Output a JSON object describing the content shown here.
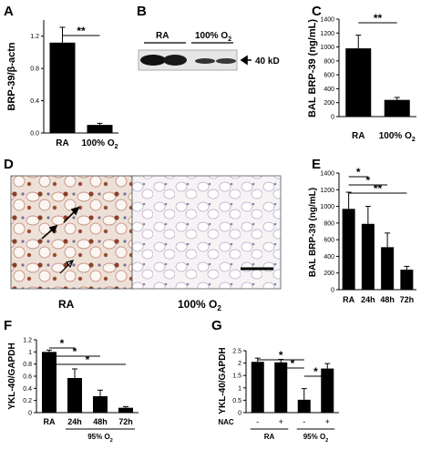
{
  "figure": {
    "panel_letters": [
      "A",
      "B",
      "C",
      "D",
      "E",
      "F",
      "G"
    ],
    "blot": {
      "lanes_left": "RA",
      "lanes_right": "100% O",
      "lanes_right_sub": "2",
      "band_marker": "40 kD"
    },
    "micro": {
      "left_label": "RA",
      "right_label": "100% O",
      "right_label_sub": "2"
    }
  },
  "chart_data": [
    {
      "id": "A",
      "type": "bar",
      "ylabel": "BRP-39/β-actn",
      "categories": [
        "RA",
        "100% O"
      ],
      "category_subs": [
        "",
        "2"
      ],
      "values": [
        1.12,
        0.1
      ],
      "errors": [
        0.19,
        0.02
      ],
      "ylim": [
        0,
        1.4
      ],
      "yticks": [
        "0.0",
        "0.4",
        "0.8",
        "1.2"
      ],
      "ytick_values": [
        0,
        0.4,
        0.8,
        1.2
      ],
      "bar_color": "#000000",
      "sig": [
        {
          "from": 0,
          "to": 1,
          "text": "**"
        }
      ]
    },
    {
      "id": "C",
      "type": "bar",
      "ylabel": "BAL BRP-39 (ng/mL)",
      "categories": [
        "RA",
        "100% O"
      ],
      "category_subs": [
        "",
        "2"
      ],
      "values": [
        980,
        240
      ],
      "errors": [
        190,
        35
      ],
      "ylim": [
        0,
        1400
      ],
      "yticks": [
        "0",
        "200",
        "400",
        "600",
        "800",
        "1000",
        "1200",
        "1400"
      ],
      "ytick_values": [
        0,
        200,
        400,
        600,
        800,
        1000,
        1200,
        1400
      ],
      "bar_color": "#000000",
      "sig": [
        {
          "from": 0,
          "to": 1,
          "text": "**"
        }
      ]
    },
    {
      "id": "E",
      "type": "bar",
      "ylabel": "BAL BRP-39 (ng/mL)",
      "categories": [
        "RA",
        "24h",
        "48h",
        "72h"
      ],
      "values": [
        970,
        790,
        510,
        240
      ],
      "errors": [
        200,
        210,
        170,
        40
      ],
      "ylim": [
        0,
        1400
      ],
      "yticks": [
        "0",
        "200",
        "400",
        "600",
        "800",
        "1000",
        "1200",
        "1400"
      ],
      "ytick_values": [
        0,
        200,
        400,
        600,
        800,
        1000,
        1200,
        1400
      ],
      "bar_color": "#000000",
      "sig": [
        {
          "from": 0,
          "to": 1,
          "text": "*"
        },
        {
          "from": 0,
          "to": 2,
          "text": "*"
        },
        {
          "from": 0,
          "to": 3,
          "text": "**"
        }
      ]
    },
    {
      "id": "F",
      "type": "bar",
      "ylabel": "YKL-40/GAPDH",
      "categories": [
        "RA",
        "24h",
        "48h",
        "72h"
      ],
      "values": [
        1.0,
        0.57,
        0.27,
        0.08
      ],
      "errors": [
        0.03,
        0.15,
        0.1,
        0.02
      ],
      "ylim": [
        0,
        1.2
      ],
      "yticks": [
        "0",
        "0.2",
        "0.4",
        "0.6",
        "0.8",
        "1",
        "1.2"
      ],
      "ytick_values": [
        0,
        0.2,
        0.4,
        0.6,
        0.8,
        1,
        1.2
      ],
      "bar_color": "#000000",
      "group_label": "95% O",
      "group_label_sub": "2",
      "sig": [
        {
          "from": 0,
          "to": 1,
          "text": "*"
        },
        {
          "from": 0,
          "to": 2,
          "text": "*"
        },
        {
          "from": 0,
          "to": 3,
          "text": "*"
        }
      ]
    },
    {
      "id": "G",
      "type": "bar",
      "ylabel": "YKL-40/GAPDH",
      "categories": [
        "-",
        "+",
        "-",
        "+"
      ],
      "row_label": "NAC",
      "group_labels": [
        "RA",
        "95% O"
      ],
      "group_label_subs": [
        "",
        "2"
      ],
      "values": [
        2.05,
        2.03,
        0.52,
        1.78
      ],
      "errors": [
        0.15,
        0.12,
        0.45,
        0.2
      ],
      "ylim": [
        0,
        2.5
      ],
      "yticks": [
        "0",
        "0.5",
        "1",
        "1.5",
        "2",
        "2.5"
      ],
      "ytick_values": [
        0,
        0.5,
        1,
        1.5,
        2,
        2.5
      ],
      "bar_color": "#000000",
      "sig": [
        {
          "from": 0,
          "to": 2,
          "text": "*"
        },
        {
          "from": 1,
          "to": 2,
          "text": "*"
        },
        {
          "from": 2,
          "to": 3,
          "text": "*"
        }
      ]
    }
  ]
}
